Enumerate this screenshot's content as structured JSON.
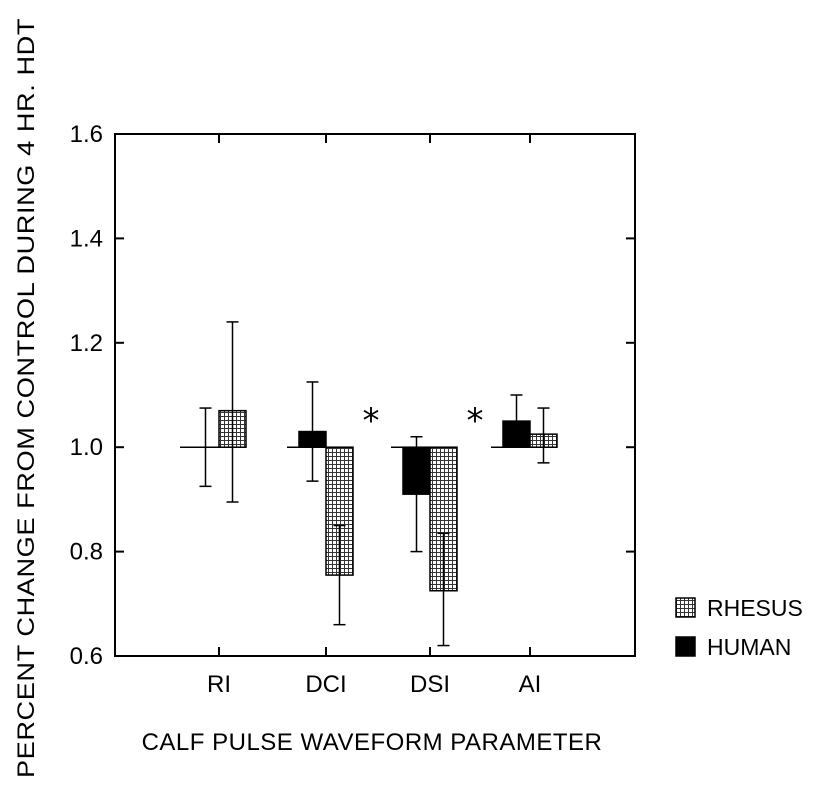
{
  "chart_data": {
    "type": "bar",
    "xlabel": "CALF PULSE WAVEFORM PARAMETER",
    "ylabel": "PERCENT CHANGE FROM CONTROL DURING 4 HR. HDT",
    "categories": [
      "RI",
      "DCI",
      "DSI",
      "AI"
    ],
    "ylim": [
      0.6,
      1.6
    ],
    "yticks": [
      "0.6",
      "0.8",
      "1.0",
      "1.2",
      "1.4",
      "1.6"
    ],
    "baseline": 1.0,
    "grid": false,
    "legend_position": "right",
    "series": [
      {
        "name": "HUMAN",
        "fill": "solid-black",
        "values": [
          1.0,
          1.03,
          0.91,
          1.05
        ],
        "err_low": [
          0.925,
          0.935,
          0.8,
          1.0
        ],
        "err_high": [
          1.075,
          1.125,
          1.02,
          1.1
        ]
      },
      {
        "name": "RHESUS",
        "fill": "crosshatch",
        "values": [
          1.07,
          0.755,
          0.725,
          1.025
        ],
        "err_low": [
          0.895,
          0.66,
          0.62,
          0.97
        ],
        "err_high": [
          1.24,
          0.85,
          0.835,
          1.075
        ]
      }
    ],
    "significance": [
      {
        "category": "DCI",
        "symbol": "*"
      },
      {
        "category": "DSI",
        "symbol": "*"
      }
    ],
    "legend": [
      "RHESUS",
      "HUMAN"
    ]
  }
}
